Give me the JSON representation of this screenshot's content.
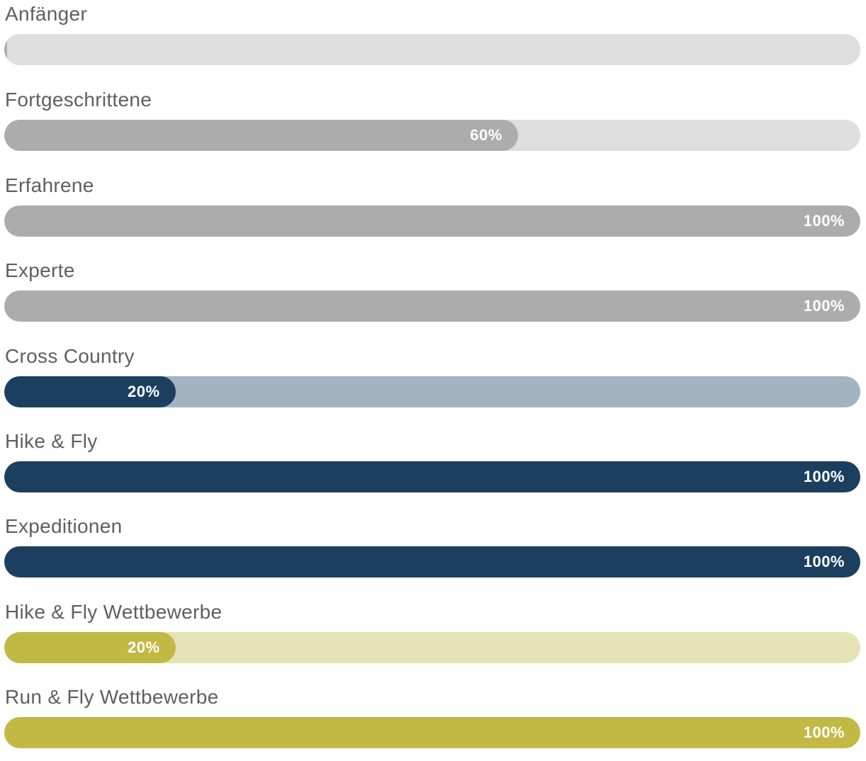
{
  "skills": [
    {
      "label": "Anfänger",
      "percent": 0,
      "percent_text": "",
      "fill_color": "#acacac",
      "track_color": "#dedede"
    },
    {
      "label": "Fortgeschrittene",
      "percent": 60,
      "percent_text": "60%",
      "fill_color": "#acacac",
      "track_color": "#dedede"
    },
    {
      "label": "Erfahrene",
      "percent": 100,
      "percent_text": "100%",
      "fill_color": "#acacac",
      "track_color": "#dedede"
    },
    {
      "label": "Experte",
      "percent": 100,
      "percent_text": "100%",
      "fill_color": "#acacac",
      "track_color": "#dedede"
    },
    {
      "label": "Cross Country",
      "percent": 20,
      "percent_text": "20%",
      "fill_color": "#1c3f60",
      "track_color": "#a3b3c1"
    },
    {
      "label": "Hike & Fly",
      "percent": 100,
      "percent_text": "100%",
      "fill_color": "#1c3f60",
      "track_color": "#a3b3c1"
    },
    {
      "label": "Expeditionen",
      "percent": 100,
      "percent_text": "100%",
      "fill_color": "#1c3f60",
      "track_color": "#a3b3c1"
    },
    {
      "label": "Hike & Fly Wettbewerbe",
      "percent": 20,
      "percent_text": "20%",
      "fill_color": "#c2b944",
      "track_color": "#e6e4b6"
    },
    {
      "label": "Run & Fly Wettbewerbe",
      "percent": 100,
      "percent_text": "100%",
      "fill_color": "#c2b944",
      "track_color": "#e6e4b6"
    }
  ]
}
